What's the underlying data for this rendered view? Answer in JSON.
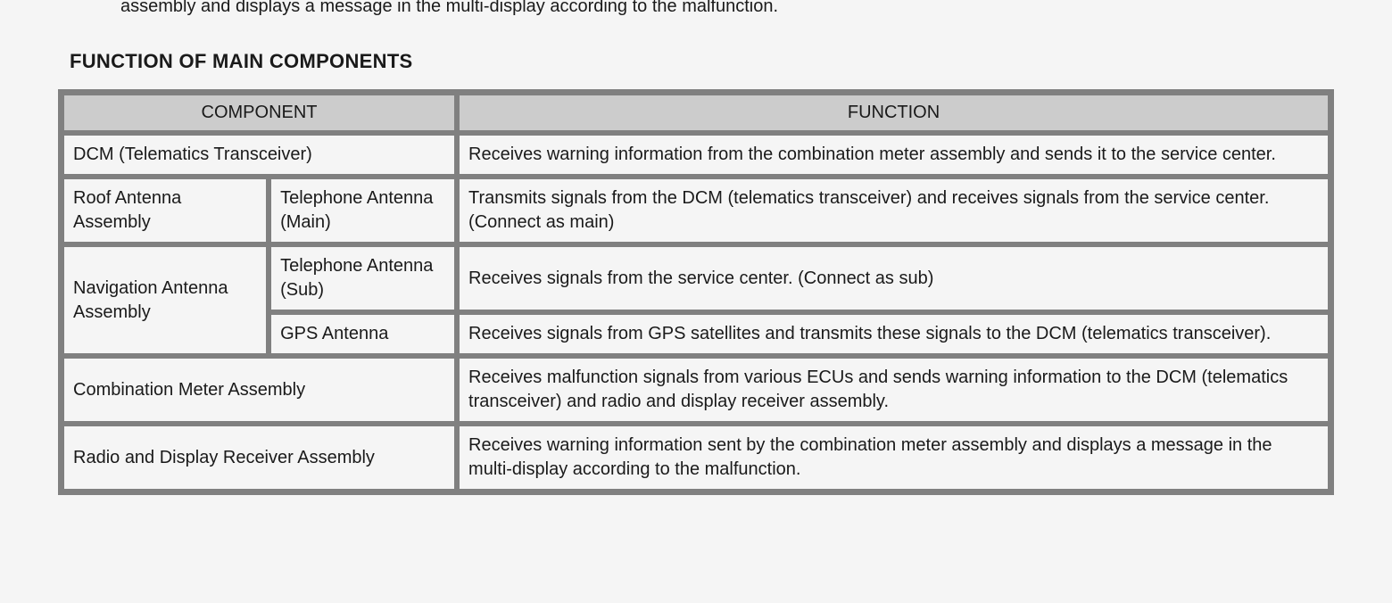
{
  "partial_text": "assembly and displays a message in the multi-display according to the malfunction.",
  "section_title": "FUNCTION OF MAIN COMPONENTS",
  "table": {
    "headers": {
      "component": "COMPONENT",
      "function": "FUNCTION"
    },
    "rows": [
      {
        "component": "DCM (Telematics Transceiver)",
        "function": "Receives warning information from the combination meter assembly and sends it to the service center."
      },
      {
        "component_main": "Roof Antenna Assembly",
        "component_sub": "Telephone Antenna (Main)",
        "function": "Transmits signals from the DCM (telematics transceiver) and receives signals from the service center. (Connect as main)"
      },
      {
        "component_main": "Navigation Antenna Assembly",
        "component_sub": "Telephone Antenna (Sub)",
        "function": "Receives signals from the service center. (Connect as sub)"
      },
      {
        "component_sub": "GPS Antenna",
        "function": "Receives signals from GPS satellites and transmits these signals to the DCM (telematics transceiver)."
      },
      {
        "component": "Combination Meter Assembly",
        "function": "Receives malfunction signals from various ECUs and sends warning information to the DCM (telematics transceiver) and radio and display receiver assembly."
      },
      {
        "component": "Radio and Display Receiver Assembly",
        "function": "Receives warning information sent by the combination meter assembly and displays a message in the multi-display according to the malfunction."
      }
    ]
  }
}
